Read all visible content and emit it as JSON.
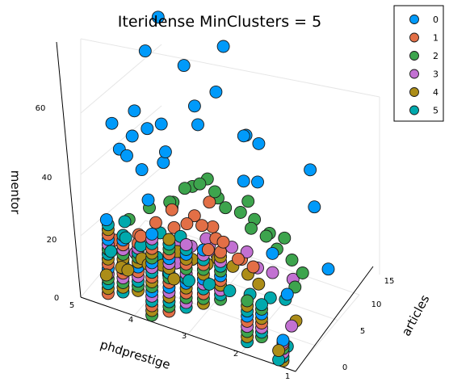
{
  "chart_data": {
    "type": "scatter",
    "subtype": "3d",
    "title": "Iteridense MinClusters = 5",
    "xlabel": "phdprestige",
    "ylabel": "articles",
    "zlabel": "mentor",
    "x_ticks": [
      "5",
      "4",
      "3",
      "2",
      "1"
    ],
    "y_ticks": [
      "0",
      "5",
      "10",
      "15"
    ],
    "z_ticks": [
      "0",
      "20",
      "40",
      "60"
    ],
    "xlim": [
      0.8,
      5.0
    ],
    "ylim": [
      -1,
      19
    ],
    "zlim": [
      0,
      78
    ],
    "legend_position": "top-right",
    "series": [
      {
        "name": "0",
        "color": "#009AFA",
        "points": [
          [
            4.3,
            2,
            47
          ],
          [
            4.2,
            2,
            54
          ],
          [
            4.0,
            3,
            56
          ],
          [
            3.9,
            2,
            35
          ],
          [
            4.1,
            3,
            42
          ],
          [
            4.4,
            5,
            56
          ],
          [
            3.9,
            6,
            44
          ],
          [
            4.1,
            8,
            36
          ],
          [
            4.3,
            10,
            44
          ],
          [
            4.6,
            10,
            66
          ],
          [
            3.3,
            12,
            72
          ],
          [
            4.6,
            13,
            72
          ],
          [
            1.6,
            12,
            30
          ],
          [
            2.0,
            16,
            33
          ],
          [
            3.0,
            13,
            43
          ],
          [
            3.2,
            16,
            37
          ],
          [
            4.5,
            1,
            58
          ],
          [
            4.6,
            1,
            26
          ],
          [
            1.9,
            6,
            23
          ],
          [
            1.3,
            2,
            20
          ],
          [
            2.5,
            10,
            36
          ],
          [
            2.8,
            14,
            40
          ],
          [
            3.6,
            14,
            52
          ],
          [
            4.0,
            14,
            45
          ],
          [
            4.6,
            4,
            44
          ],
          [
            4.2,
            14,
            57
          ],
          [
            2.6,
            8,
            39
          ],
          [
            1.5,
            14,
            7
          ],
          [
            4.1,
            16,
            35
          ]
        ]
      },
      {
        "name": "1",
        "color": "#E26F46",
        "points": [
          [
            4.6,
            3,
            16
          ],
          [
            4.2,
            4,
            18
          ],
          [
            4.0,
            5,
            22
          ],
          [
            3.7,
            5,
            28
          ],
          [
            3.5,
            6,
            23
          ],
          [
            3.3,
            7,
            22
          ],
          [
            3.1,
            6,
            17
          ],
          [
            2.9,
            7,
            19
          ],
          [
            2.7,
            8,
            13
          ],
          [
            2.5,
            9,
            10
          ],
          [
            4.4,
            6,
            14
          ],
          [
            3.9,
            8,
            16
          ],
          [
            3.6,
            9,
            20
          ],
          [
            3.4,
            10,
            24
          ],
          [
            3.2,
            9,
            15
          ],
          [
            2.8,
            10,
            9
          ],
          [
            4.1,
            10,
            18
          ],
          [
            3.5,
            12,
            12
          ]
        ]
      },
      {
        "name": "2",
        "color": "#3DA44D",
        "points": [
          [
            4.5,
            5,
            20
          ],
          [
            4.2,
            6,
            24
          ],
          [
            3.9,
            7,
            26
          ],
          [
            3.7,
            8,
            30
          ],
          [
            3.5,
            9,
            31
          ],
          [
            3.3,
            10,
            28
          ],
          [
            3.1,
            10,
            24
          ],
          [
            2.9,
            11,
            22
          ],
          [
            2.7,
            11,
            18
          ],
          [
            2.5,
            12,
            15
          ],
          [
            2.3,
            12,
            12
          ],
          [
            2.1,
            13,
            8
          ],
          [
            1.9,
            13,
            5
          ],
          [
            4.0,
            9,
            22
          ],
          [
            3.8,
            11,
            25
          ],
          [
            3.6,
            12,
            27
          ],
          [
            3.4,
            12,
            22
          ],
          [
            2.8,
            13,
            17
          ],
          [
            2.6,
            14,
            12
          ],
          [
            3.0,
            14,
            20
          ],
          [
            2.4,
            15,
            10
          ],
          [
            1.8,
            10,
            6
          ]
        ]
      },
      {
        "name": "3",
        "color": "#C271D2",
        "points": [
          [
            4.3,
            4,
            12
          ],
          [
            4.0,
            5,
            10
          ],
          [
            3.7,
            6,
            9
          ],
          [
            3.5,
            7,
            14
          ],
          [
            3.3,
            8,
            16
          ],
          [
            3.1,
            8,
            12
          ],
          [
            2.9,
            9,
            14
          ],
          [
            2.7,
            10,
            12
          ],
          [
            2.5,
            10,
            8
          ],
          [
            2.3,
            11,
            6
          ],
          [
            3.8,
            7,
            13
          ],
          [
            3.4,
            10,
            10
          ],
          [
            2.0,
            12,
            4
          ],
          [
            1.3,
            1,
            6
          ],
          [
            1.3,
            3,
            8
          ]
        ]
      },
      {
        "name": "4",
        "color": "#AC8D18",
        "points": [
          [
            4.6,
            1,
            8
          ],
          [
            4.4,
            2,
            10
          ],
          [
            4.1,
            3,
            13
          ],
          [
            3.8,
            4,
            11
          ],
          [
            3.6,
            5,
            15
          ],
          [
            3.4,
            6,
            12
          ],
          [
            3.2,
            7,
            10
          ],
          [
            3.0,
            7,
            13
          ],
          [
            2.8,
            8,
            10
          ],
          [
            2.6,
            9,
            7
          ],
          [
            2.4,
            9,
            5
          ],
          [
            4.2,
            1,
            12
          ],
          [
            3.9,
            2,
            14
          ],
          [
            3.5,
            3,
            10
          ],
          [
            1.3,
            4,
            8
          ],
          [
            1.3,
            0,
            5
          ]
        ]
      },
      {
        "name": "5",
        "color": "#00A9AD",
        "points": [
          [
            4.6,
            2,
            14
          ],
          [
            4.4,
            3,
            18
          ],
          [
            4.2,
            4,
            15
          ],
          [
            3.9,
            4,
            13
          ],
          [
            3.6,
            3,
            11
          ],
          [
            3.3,
            4,
            9
          ],
          [
            3.0,
            5,
            8
          ],
          [
            2.7,
            6,
            6
          ],
          [
            2.4,
            7,
            5
          ],
          [
            2.1,
            8,
            4
          ],
          [
            1.9,
            9,
            3
          ],
          [
            4.5,
            4,
            21
          ],
          [
            4.0,
            6,
            17
          ],
          [
            3.7,
            7,
            16
          ],
          [
            1.3,
            2,
            3
          ],
          [
            1.3,
            0,
            2
          ]
        ]
      }
    ],
    "stacks": [
      {
        "x": 4.65,
        "y": 2.0,
        "z_top": 24,
        "series": [
          "1",
          "4",
          "5",
          "2",
          "3",
          "0"
        ]
      },
      {
        "x": 4.45,
        "y": 3.0,
        "z_top": 20,
        "series": [
          "5",
          "4",
          "2",
          "3",
          "1",
          "0"
        ]
      },
      {
        "x": 4.25,
        "y": 4.0,
        "z_top": 17,
        "series": [
          "4",
          "2",
          "5",
          "3",
          "1",
          "0"
        ]
      },
      {
        "x": 3.75,
        "y": 1.0,
        "z_top": 28,
        "series": [
          "2",
          "4",
          "1",
          "5",
          "3",
          "0"
        ]
      },
      {
        "x": 3.55,
        "y": 2.5,
        "z_top": 25,
        "series": [
          "1",
          "2",
          "5",
          "4",
          "3",
          "0"
        ]
      },
      {
        "x": 3.35,
        "y": 4.0,
        "z_top": 22,
        "series": [
          "5",
          "3",
          "2",
          "1",
          "4",
          "0"
        ]
      },
      {
        "x": 3.15,
        "y": 5.5,
        "z_top": 19,
        "series": [
          "4",
          "2",
          "1",
          "5",
          "3",
          "0"
        ]
      },
      {
        "x": 2.95,
        "y": 7.0,
        "z_top": 17,
        "series": [
          "2",
          "5",
          "3",
          "4",
          "1",
          "0"
        ]
      },
      {
        "x": 2.05,
        "y": 2.0,
        "z_top": 15,
        "series": [
          "5",
          "4",
          "2",
          "3",
          "1",
          "0"
        ]
      },
      {
        "x": 1.9,
        "y": 3.5,
        "z_top": 12,
        "series": [
          "2",
          "5",
          "3",
          "1",
          "4",
          "0"
        ]
      },
      {
        "x": 1.3,
        "y": 1.0,
        "z_top": 8,
        "series": [
          "4",
          "5",
          "3",
          "2",
          "1",
          "0"
        ]
      }
    ]
  }
}
